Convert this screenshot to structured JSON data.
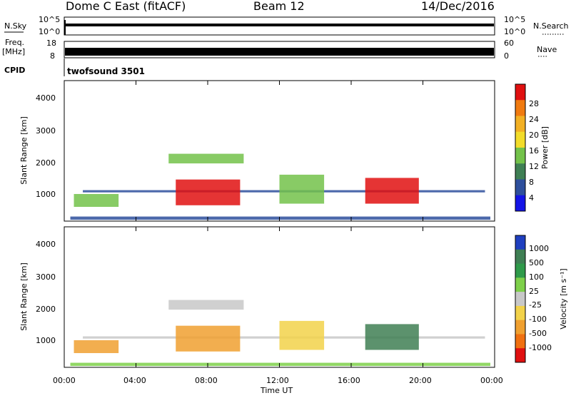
{
  "header": {
    "station": "Dome C East (fitACF)",
    "beam": "Beam 12",
    "date": "14/Dec/2016"
  },
  "strip_sky": {
    "left_label": "N.Sky",
    "left_ticks": [
      "10^5",
      "10^0"
    ],
    "right_ticks": [
      "10^5",
      "10^0"
    ],
    "right_label": "N.Search"
  },
  "strip_freq": {
    "left_label_1": "Freq.",
    "left_label_2": "[MHz]",
    "left_ticks": [
      "18",
      "8"
    ],
    "right_ticks": [
      "60",
      "0"
    ],
    "right_label": "Nave"
  },
  "cpid": {
    "label": "CPID",
    "value": "twofsound 3501"
  },
  "chart_data": [
    {
      "type": "heatmap",
      "title": "",
      "ylabel": "Slant Range [km]",
      "xlabel": "",
      "x_range_hours": [
        0,
        24
      ],
      "ylim_km": [
        180,
        4500
      ],
      "y_ticks": [
        "1000",
        "2000",
        "3000",
        "4000"
      ],
      "x_ticks": [
        "00:00",
        "04:00",
        "08:00",
        "12:00",
        "16:00",
        "20:00",
        "00:00"
      ],
      "colorbar": {
        "label": "Power [dB]",
        "ticks": [
          "28",
          "24",
          "20",
          "16",
          "12",
          "8",
          "4"
        ],
        "colors": [
          "#e01010",
          "#f07a10",
          "#f2b024",
          "#f2dc2a",
          "#73c24a",
          "#3f7f54",
          "#2e4f9c",
          "#1414e6"
        ]
      },
      "echo_regions": [
        {
          "t0": 0.3,
          "t1": 23.8,
          "r0": 200,
          "r1": 300,
          "level": "low"
        },
        {
          "t0": 1.0,
          "t1": 23.5,
          "r0": 1050,
          "r1": 1120,
          "level": "low"
        },
        {
          "t0": 6.2,
          "t1": 9.8,
          "r0": 650,
          "r1": 1450,
          "level": "high"
        },
        {
          "t0": 16.8,
          "t1": 19.8,
          "r0": 700,
          "r1": 1500,
          "level": "high"
        },
        {
          "t0": 5.8,
          "t1": 10.0,
          "r0": 1950,
          "r1": 2250,
          "level": "mid"
        },
        {
          "t0": 12.0,
          "t1": 14.5,
          "r0": 700,
          "r1": 1600,
          "level": "mid"
        },
        {
          "t0": 0.5,
          "t1": 3.0,
          "r0": 600,
          "r1": 1000,
          "level": "mid"
        }
      ]
    },
    {
      "type": "heatmap",
      "title": "",
      "ylabel": "Slant Range [km]",
      "xlabel": "Time UT",
      "x_range_hours": [
        0,
        24
      ],
      "ylim_km": [
        180,
        4500
      ],
      "y_ticks": [
        "1000",
        "2000",
        "3000",
        "4000"
      ],
      "x_ticks": [
        "00:00",
        "04:00",
        "08:00",
        "12:00",
        "16:00",
        "20:00",
        "00:00"
      ],
      "colorbar": {
        "label": "Velocity [m s⁻¹]",
        "ticks": [
          "1000",
          "500",
          "100",
          "25",
          "-25",
          "-100",
          "-500",
          "-1000"
        ],
        "colors": [
          "#1f3fbf",
          "#3f7f54",
          "#2f9a4a",
          "#7ed04a",
          "#c8c8c8",
          "#f2d24a",
          "#f0a030",
          "#f07010",
          "#e01010"
        ]
      },
      "echo_regions": [
        {
          "t0": 0.3,
          "t1": 23.8,
          "r0": 200,
          "r1": 300,
          "level": "v_green"
        },
        {
          "t0": 1.0,
          "t1": 23.5,
          "r0": 1050,
          "r1": 1120,
          "level": "v_grey"
        },
        {
          "t0": 6.2,
          "t1": 9.8,
          "r0": 650,
          "r1": 1450,
          "level": "v_orange"
        },
        {
          "t0": 16.8,
          "t1": 19.8,
          "r0": 700,
          "r1": 1500,
          "level": "v_green_dark"
        },
        {
          "t0": 5.8,
          "t1": 10.0,
          "r0": 1950,
          "r1": 2250,
          "level": "v_grey"
        },
        {
          "t0": 12.0,
          "t1": 14.5,
          "r0": 700,
          "r1": 1600,
          "level": "v_mixed"
        },
        {
          "t0": 0.5,
          "t1": 3.0,
          "r0": 600,
          "r1": 1000,
          "level": "v_orange"
        }
      ]
    }
  ]
}
